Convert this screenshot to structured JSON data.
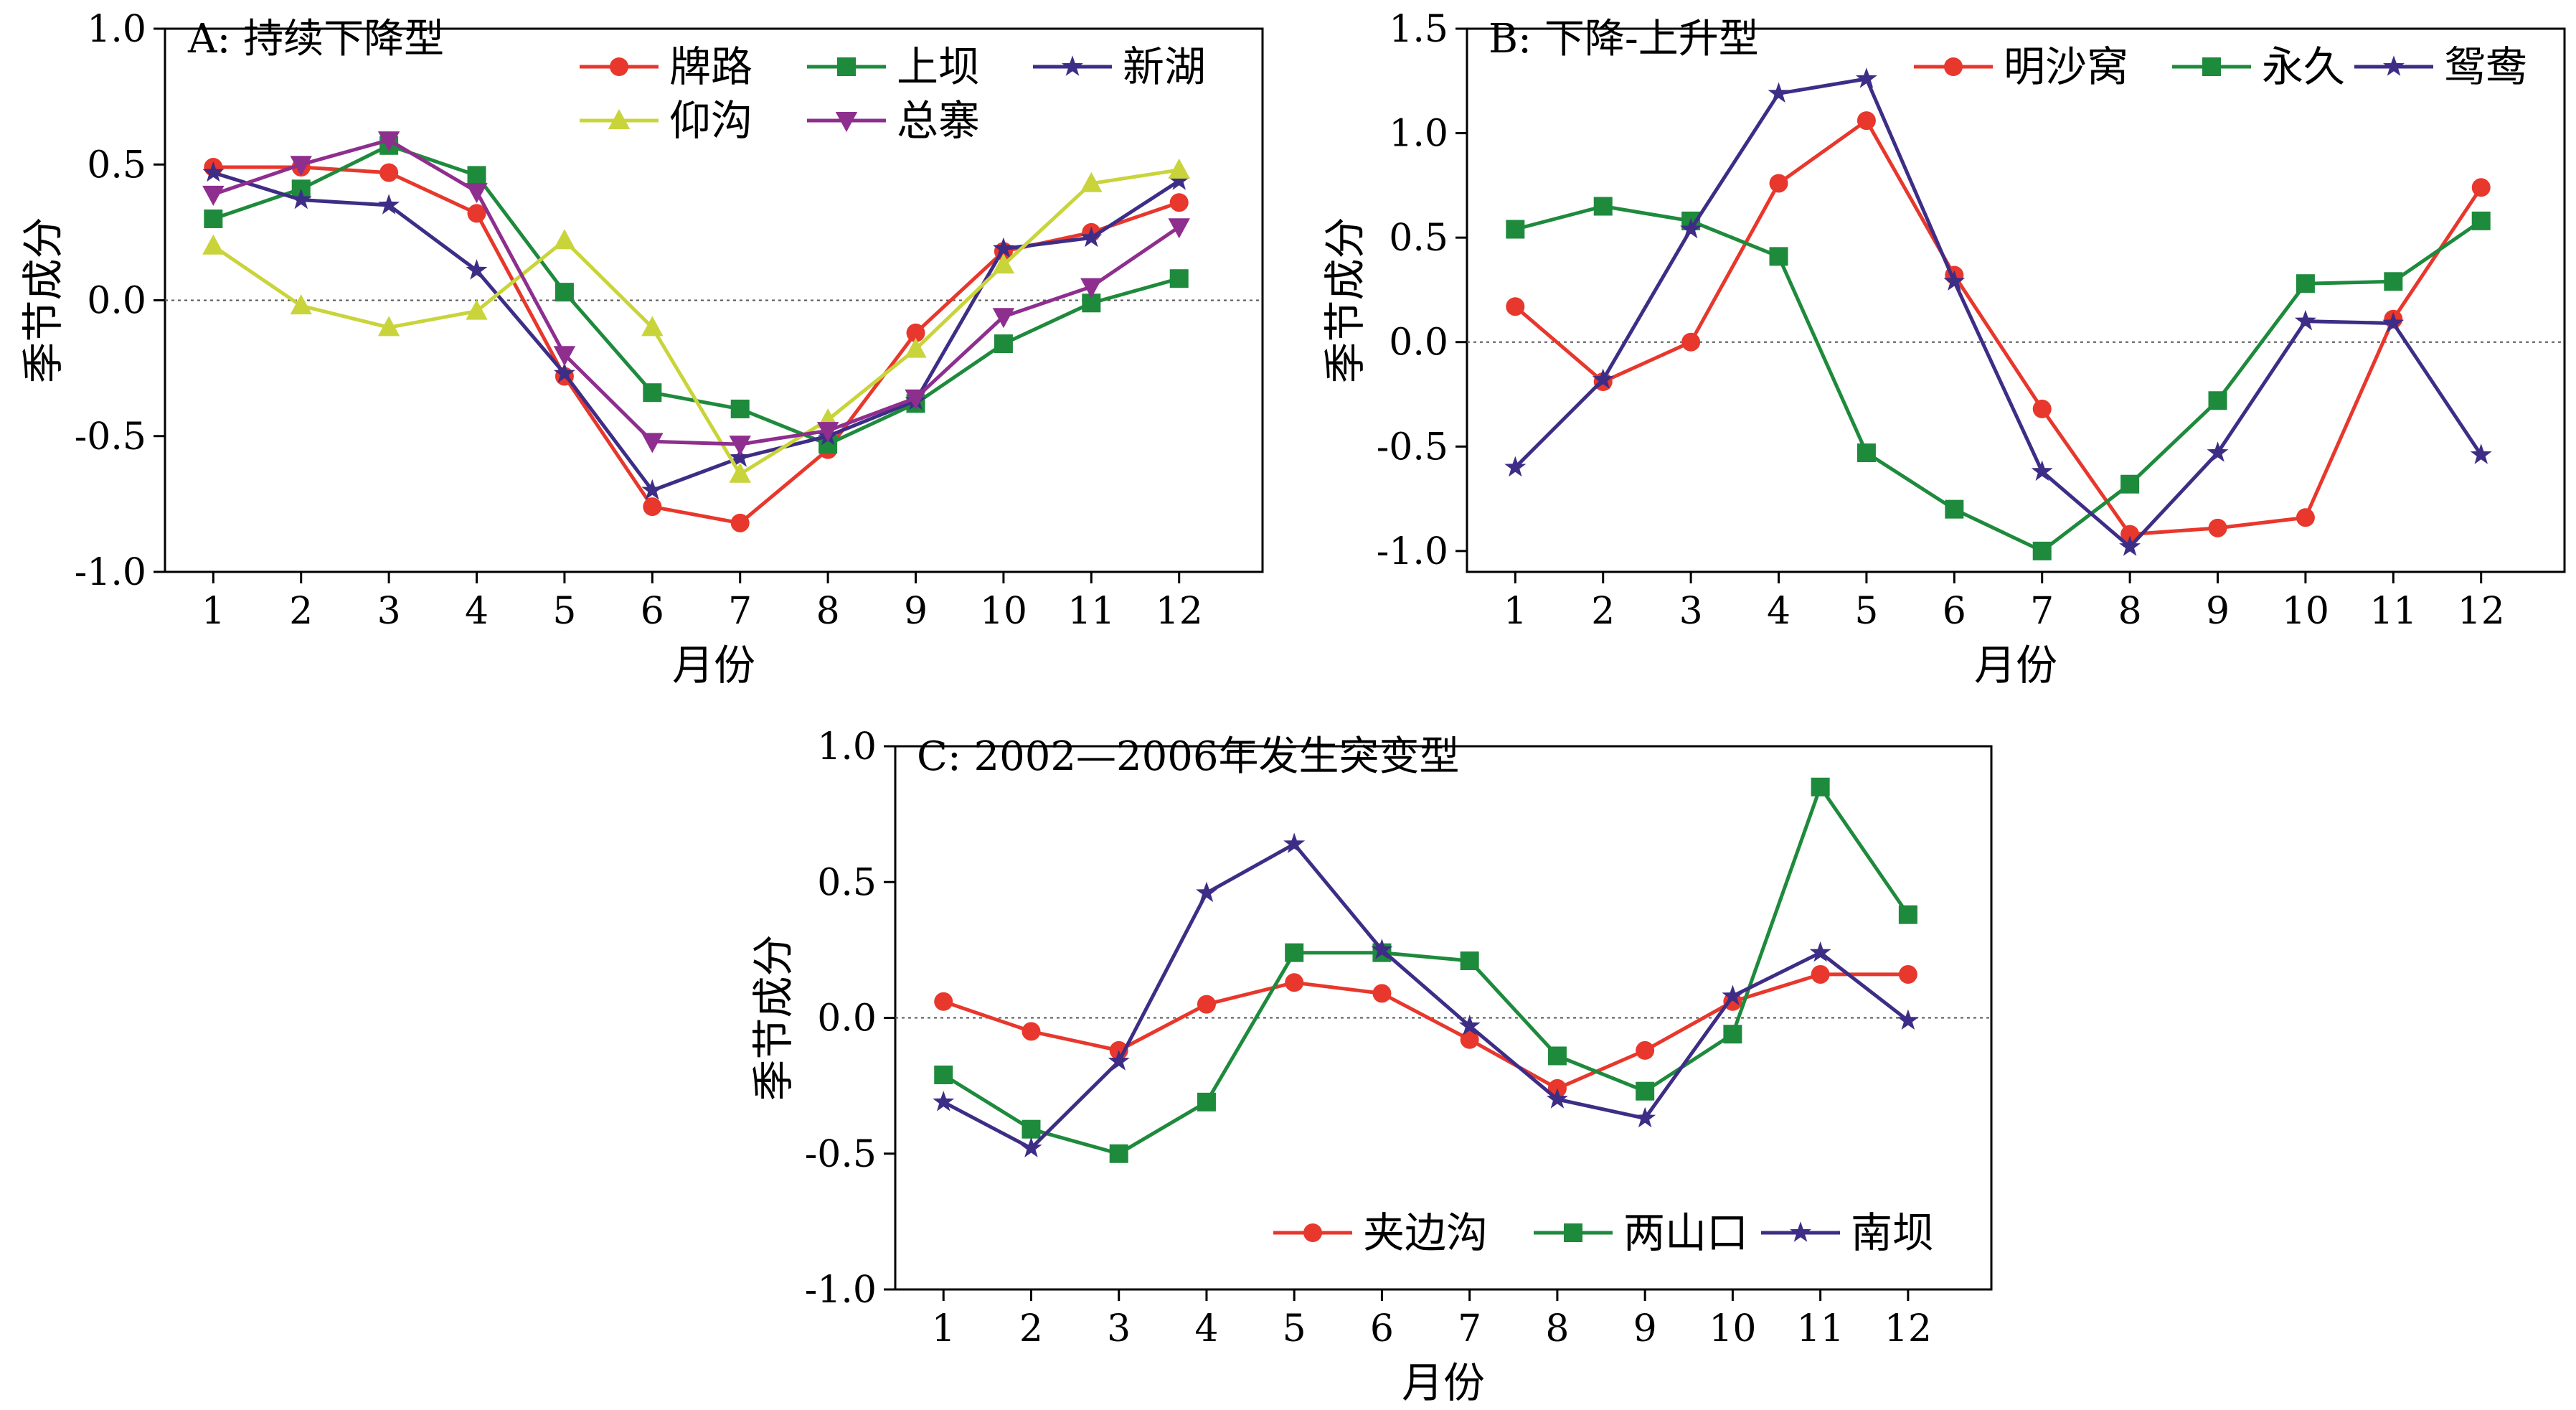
{
  "figure": {
    "marker_colors": {
      "red": "#e8372c",
      "green": "#1e8a3c",
      "purple": "#3e2d86",
      "yellow": "#c9d43b",
      "magenta": "#8e2e8e"
    }
  },
  "chart_data": [
    {
      "id": "A",
      "type": "line",
      "title": "A: 持续下降型",
      "xlabel": "月份",
      "ylabel": "季节成分",
      "categories": [
        "1",
        "2",
        "3",
        "4",
        "5",
        "6",
        "7",
        "8",
        "9",
        "10",
        "11",
        "12"
      ],
      "ylim": [
        -1.0,
        1.0
      ],
      "yticks": [
        "-1.0",
        "-0.5",
        "0.0",
        "0.5",
        "1.0"
      ],
      "yticks_values": [
        -1.0,
        -0.5,
        0.0,
        0.5,
        1.0
      ],
      "zero_line": true,
      "legend_position": "top-right",
      "series": [
        {
          "name": "牌路",
          "color": "#e8372c",
          "marker": "circle",
          "values": [
            0.49,
            0.49,
            0.47,
            0.32,
            -0.28,
            -0.76,
            -0.82,
            -0.55,
            -0.12,
            0.18,
            0.25,
            0.36
          ]
        },
        {
          "name": "上坝",
          "color": "#1e8a3c",
          "marker": "square",
          "values": [
            0.3,
            0.41,
            0.57,
            0.46,
            0.03,
            -0.34,
            -0.4,
            -0.53,
            -0.38,
            -0.16,
            -0.01,
            0.08
          ]
        },
        {
          "name": "新湖",
          "color": "#3e2d86",
          "marker": "star",
          "values": [
            0.47,
            0.37,
            0.35,
            0.11,
            -0.27,
            -0.7,
            -0.58,
            -0.5,
            -0.37,
            0.19,
            0.23,
            0.44
          ]
        },
        {
          "name": "仰沟",
          "color": "#c9d43b",
          "marker": "triangle",
          "values": [
            0.2,
            -0.02,
            -0.1,
            -0.04,
            0.22,
            -0.1,
            -0.64,
            -0.44,
            -0.18,
            0.13,
            0.43,
            0.48
          ]
        },
        {
          "name": "总寨",
          "color": "#8e2e8e",
          "marker": "triangle-down",
          "values": [
            0.39,
            0.5,
            0.59,
            0.4,
            -0.2,
            -0.52,
            -0.53,
            -0.48,
            -0.36,
            -0.06,
            0.05,
            0.27
          ]
        }
      ]
    },
    {
      "id": "B",
      "type": "line",
      "title": "B: 下降-上升型",
      "xlabel": "月份",
      "ylabel": "季节成分",
      "categories": [
        "1",
        "2",
        "3",
        "4",
        "5",
        "6",
        "7",
        "8",
        "9",
        "10",
        "11",
        "12"
      ],
      "ylim": [
        -1.1,
        1.5
      ],
      "yticks": [
        "-1.0",
        "-0.5",
        "0.0",
        "0.5",
        "1.0",
        "1.5"
      ],
      "yticks_values": [
        -1.0,
        -0.5,
        0.0,
        0.5,
        1.0,
        1.5
      ],
      "zero_line": true,
      "legend_position": "top-right",
      "series": [
        {
          "name": "明沙窝",
          "color": "#e8372c",
          "marker": "circle",
          "values": [
            0.17,
            -0.19,
            0.0,
            0.76,
            1.06,
            0.32,
            -0.32,
            -0.92,
            -0.89,
            -0.84,
            0.11,
            0.74
          ]
        },
        {
          "name": "永久",
          "color": "#1e8a3c",
          "marker": "square",
          "values": [
            0.54,
            0.65,
            0.58,
            0.41,
            -0.53,
            -0.8,
            -1.0,
            -0.68,
            -0.28,
            0.28,
            0.29,
            0.58
          ]
        },
        {
          "name": "鸳鸯",
          "color": "#3e2d86",
          "marker": "star",
          "values": [
            -0.6,
            -0.18,
            0.54,
            1.19,
            1.26,
            0.29,
            -0.62,
            -0.98,
            -0.53,
            0.1,
            0.09,
            -0.54
          ]
        }
      ]
    },
    {
      "id": "C",
      "type": "line",
      "title": "C: 2002—2006年发生突变型",
      "xlabel": "月份",
      "ylabel": "季节成分",
      "categories": [
        "1",
        "2",
        "3",
        "4",
        "5",
        "6",
        "7",
        "8",
        "9",
        "10",
        "11",
        "12"
      ],
      "ylim": [
        -1.0,
        1.0
      ],
      "yticks": [
        "-1.0",
        "-0.5",
        "0.0",
        "0.5",
        "1.0"
      ],
      "yticks_values": [
        -1.0,
        -0.5,
        0.0,
        0.5,
        1.0
      ],
      "zero_line": true,
      "legend_position": "bottom-right",
      "series": [
        {
          "name": "夹边沟",
          "color": "#e8372c",
          "marker": "circle",
          "values": [
            0.06,
            -0.05,
            -0.12,
            0.05,
            0.13,
            0.09,
            -0.08,
            -0.26,
            -0.12,
            0.06,
            0.16,
            0.16
          ]
        },
        {
          "name": "两山口",
          "color": "#1e8a3c",
          "marker": "square",
          "values": [
            -0.21,
            -0.41,
            -0.5,
            -0.31,
            0.24,
            0.24,
            0.21,
            -0.14,
            -0.27,
            -0.06,
            0.85,
            0.38
          ]
        },
        {
          "name": "南坝",
          "color": "#3e2d86",
          "marker": "star",
          "values": [
            -0.31,
            -0.48,
            -0.16,
            0.46,
            0.64,
            0.25,
            -0.03,
            -0.3,
            -0.37,
            0.08,
            0.24,
            -0.01
          ]
        }
      ]
    }
  ]
}
